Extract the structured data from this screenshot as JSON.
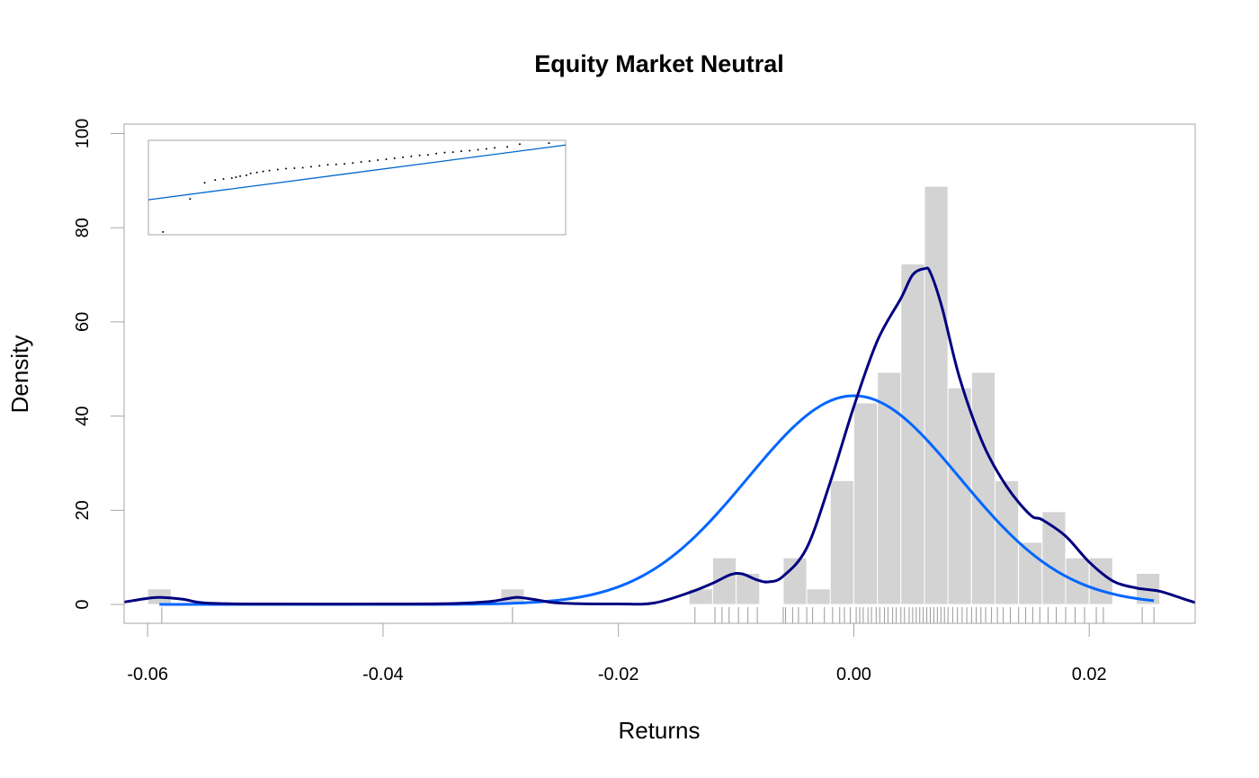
{
  "chart_data": {
    "type": "histogram",
    "title": "Equity Market Neutral",
    "xlabel": "Returns",
    "ylabel": "Density",
    "xlim": [
      -0.062,
      0.029
    ],
    "ylim": [
      -4,
      102
    ],
    "x_ticks": [
      -0.06,
      -0.04,
      -0.02,
      0.0,
      0.02
    ],
    "x_tick_labels": [
      "-0.06",
      "-0.04",
      "-0.02",
      "0.00",
      "0.02"
    ],
    "y_ticks": [
      0,
      20,
      40,
      60,
      80,
      100
    ],
    "y_tick_labels": [
      "0",
      "20",
      "40",
      "60",
      "80",
      "100"
    ],
    "grid": false,
    "colors": {
      "bars": "#d3d3d3",
      "bar_border": "#ffffff",
      "kernel_density": "#000080",
      "normal_fit": "#0066ff",
      "rug": "#999999",
      "frame": "#a6a6a6",
      "qq_line": "#0066cc",
      "qq_points": "#000000"
    },
    "histogram": {
      "bin_width": 0.002,
      "bins": [
        {
          "start": -0.06,
          "density": 3.3
        },
        {
          "start": -0.03,
          "density": 3.3
        },
        {
          "start": -0.014,
          "density": 3.3
        },
        {
          "start": -0.012,
          "density": 9.9
        },
        {
          "start": -0.01,
          "density": 6.6
        },
        {
          "start": -0.006,
          "density": 9.9
        },
        {
          "start": -0.004,
          "density": 3.3
        },
        {
          "start": -0.002,
          "density": 26.3
        },
        {
          "start": 0.0,
          "density": 42.8
        },
        {
          "start": 0.002,
          "density": 49.3
        },
        {
          "start": 0.004,
          "density": 72.3
        },
        {
          "start": 0.006,
          "density": 88.8
        },
        {
          "start": 0.008,
          "density": 46.0
        },
        {
          "start": 0.01,
          "density": 49.3
        },
        {
          "start": 0.012,
          "density": 26.3
        },
        {
          "start": 0.014,
          "density": 13.2
        },
        {
          "start": 0.016,
          "density": 19.7
        },
        {
          "start": 0.018,
          "density": 9.9
        },
        {
          "start": 0.02,
          "density": 9.9
        },
        {
          "start": 0.024,
          "density": 6.6
        }
      ]
    },
    "normal_fit": {
      "mean": 0.0,
      "sd": 0.009,
      "x_range": [
        -0.059,
        0.0255
      ]
    },
    "kernel_density": {
      "x": [
        -0.062,
        -0.06,
        -0.0588,
        -0.057,
        -0.055,
        -0.05,
        -0.04,
        -0.034,
        -0.031,
        -0.0295,
        -0.0285,
        -0.027,
        -0.025,
        -0.02,
        -0.017,
        -0.014,
        -0.012,
        -0.0105,
        -0.0095,
        -0.0082,
        -0.0072,
        -0.006,
        -0.004,
        -0.002,
        0.0,
        0.002,
        0.004,
        0.005,
        0.006,
        0.0065,
        0.0075,
        0.009,
        0.011,
        0.013,
        0.015,
        0.016,
        0.018,
        0.02,
        0.022,
        0.024,
        0.026,
        0.028,
        0.029
      ],
      "y": [
        0.5,
        1.3,
        1.5,
        1.1,
        0.3,
        0.1,
        0.1,
        0.2,
        0.6,
        1.2,
        1.5,
        1.0,
        0.3,
        0.1,
        0.3,
        2.5,
        4.5,
        6.3,
        6.5,
        5.2,
        4.8,
        6.0,
        12.0,
        26.0,
        42.0,
        56.0,
        65.0,
        70.0,
        71.3,
        70.5,
        63.0,
        48.0,
        34.0,
        25.0,
        19.0,
        18.0,
        14.5,
        9.0,
        5.0,
        3.5,
        2.8,
        1.2,
        0.4
      ]
    },
    "rug": [
      -0.0588,
      -0.029,
      -0.0135,
      -0.0118,
      -0.0112,
      -0.0106,
      -0.0098,
      -0.009,
      -0.0082,
      -0.006,
      -0.0058,
      -0.0052,
      -0.0047,
      -0.004,
      -0.0035,
      -0.0025,
      -0.0018,
      -0.0012,
      -0.0008,
      -0.0003,
      0.0002,
      0.0005,
      0.0008,
      0.0012,
      0.0015,
      0.0019,
      0.0022,
      0.0026,
      0.0029,
      0.0033,
      0.0036,
      0.004,
      0.0043,
      0.0047,
      0.005,
      0.0053,
      0.0056,
      0.0059,
      0.0062,
      0.0065,
      0.0068,
      0.0071,
      0.0074,
      0.0077,
      0.008,
      0.0084,
      0.0088,
      0.0092,
      0.0096,
      0.01,
      0.0104,
      0.0108,
      0.0112,
      0.0117,
      0.0122,
      0.0127,
      0.0133,
      0.014,
      0.0146,
      0.0152,
      0.0158,
      0.0165,
      0.0172,
      0.018,
      0.0188,
      0.0196,
      0.0206,
      0.0212,
      0.0245,
      0.0255
    ],
    "inset_qq": {
      "line": {
        "x": [
          0,
          1
        ],
        "y": [
          0.37,
          0.95
        ]
      },
      "points": [
        {
          "x": 0.035,
          "y": 0.03
        },
        {
          "x": 0.1,
          "y": 0.38
        },
        {
          "x": 0.135,
          "y": 0.55
        },
        {
          "x": 0.16,
          "y": 0.58
        },
        {
          "x": 0.18,
          "y": 0.59
        },
        {
          "x": 0.2,
          "y": 0.6
        },
        {
          "x": 0.21,
          "y": 0.61
        },
        {
          "x": 0.22,
          "y": 0.62
        },
        {
          "x": 0.235,
          "y": 0.63
        },
        {
          "x": 0.245,
          "y": 0.65
        },
        {
          "x": 0.26,
          "y": 0.66
        },
        {
          "x": 0.275,
          "y": 0.67
        },
        {
          "x": 0.29,
          "y": 0.68
        },
        {
          "x": 0.31,
          "y": 0.69
        },
        {
          "x": 0.33,
          "y": 0.7
        },
        {
          "x": 0.35,
          "y": 0.705
        },
        {
          "x": 0.37,
          "y": 0.71
        },
        {
          "x": 0.39,
          "y": 0.72
        },
        {
          "x": 0.41,
          "y": 0.73
        },
        {
          "x": 0.43,
          "y": 0.74
        },
        {
          "x": 0.45,
          "y": 0.745
        },
        {
          "x": 0.47,
          "y": 0.75
        },
        {
          "x": 0.49,
          "y": 0.76
        },
        {
          "x": 0.51,
          "y": 0.77
        },
        {
          "x": 0.53,
          "y": 0.78
        },
        {
          "x": 0.55,
          "y": 0.79
        },
        {
          "x": 0.57,
          "y": 0.8
        },
        {
          "x": 0.59,
          "y": 0.81
        },
        {
          "x": 0.61,
          "y": 0.82
        },
        {
          "x": 0.63,
          "y": 0.83
        },
        {
          "x": 0.65,
          "y": 0.84
        },
        {
          "x": 0.67,
          "y": 0.845
        },
        {
          "x": 0.69,
          "y": 0.86
        },
        {
          "x": 0.71,
          "y": 0.87
        },
        {
          "x": 0.73,
          "y": 0.875
        },
        {
          "x": 0.75,
          "y": 0.885
        },
        {
          "x": 0.77,
          "y": 0.89
        },
        {
          "x": 0.79,
          "y": 0.9
        },
        {
          "x": 0.81,
          "y": 0.91
        },
        {
          "x": 0.83,
          "y": 0.92
        },
        {
          "x": 0.86,
          "y": 0.93
        },
        {
          "x": 0.89,
          "y": 0.96
        },
        {
          "x": 0.96,
          "y": 0.97
        }
      ]
    }
  }
}
